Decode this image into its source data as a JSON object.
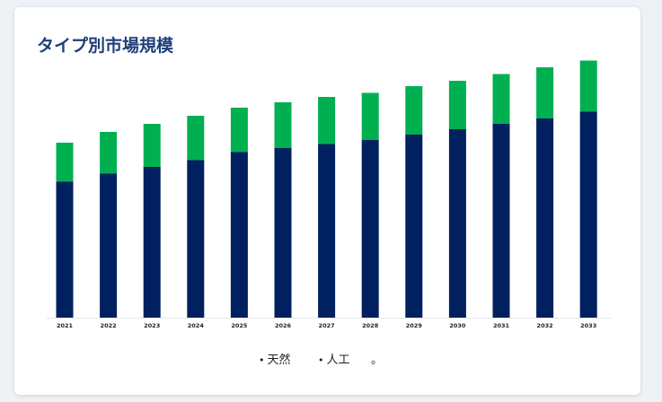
{
  "title": "タイプ別市場規模",
  "colors": {
    "natural": "#00b050",
    "artificial": "#002060",
    "title": "#1f3f7a"
  },
  "legend": {
    "items": [
      "天然",
      "人工"
    ],
    "extra": "。"
  },
  "chart_data": {
    "type": "bar",
    "stacked": true,
    "categories": [
      "2021",
      "2022",
      "2023",
      "2024",
      "2025",
      "2026",
      "2027",
      "2028",
      "2029",
      "2030",
      "2031",
      "2032",
      "2033"
    ],
    "series": [
      {
        "name": "人工",
        "values": [
          50.5,
          53.5,
          56.0,
          58.5,
          61.5,
          63.0,
          64.5,
          66.0,
          68.0,
          70.0,
          72.0,
          74.0,
          76.5
        ]
      },
      {
        "name": "天然",
        "values": [
          14.5,
          15.5,
          16.0,
          16.5,
          16.5,
          17.0,
          17.5,
          17.5,
          18.0,
          18.0,
          18.5,
          19.0,
          19.0
        ]
      }
    ],
    "ylim": [
      0,
      100
    ],
    "grid": false,
    "legend_position": "bottom"
  }
}
